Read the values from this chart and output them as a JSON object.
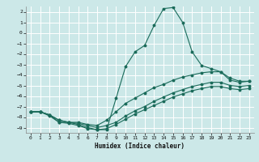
{
  "title": "",
  "xlabel": "Humidex (Indice chaleur)",
  "bg_color": "#cce8e8",
  "grid_color": "#ffffff",
  "line_color": "#1a6b5a",
  "xlim": [
    -0.5,
    23.5
  ],
  "ylim": [
    -9.5,
    2.5
  ],
  "xticks": [
    0,
    1,
    2,
    3,
    4,
    5,
    6,
    7,
    8,
    9,
    10,
    11,
    12,
    13,
    14,
    15,
    16,
    17,
    18,
    19,
    20,
    21,
    22,
    23
  ],
  "yticks": [
    2,
    1,
    0,
    -1,
    -2,
    -3,
    -4,
    -5,
    -6,
    -7,
    -8,
    -9
  ],
  "line1_x": [
    0,
    1,
    2,
    3,
    4,
    5,
    6,
    7,
    8,
    9,
    10,
    11,
    12,
    13,
    14,
    15,
    16,
    17,
    18,
    19,
    20,
    21,
    22,
    23
  ],
  "line1_y": [
    -7.5,
    -7.5,
    -7.8,
    -8.5,
    -8.5,
    -8.7,
    -9.0,
    -9.2,
    -9.2,
    -6.2,
    -3.2,
    -1.8,
    -1.2,
    0.7,
    2.3,
    2.4,
    1.0,
    -1.8,
    -3.1,
    -3.4,
    -3.7,
    -4.5,
    -4.7,
    -4.6
  ],
  "line2_x": [
    0,
    1,
    2,
    3,
    4,
    5,
    6,
    7,
    8,
    9,
    10,
    11,
    12,
    13,
    14,
    15,
    16,
    17,
    18,
    19,
    20,
    21,
    22,
    23
  ],
  "line2_y": [
    -7.5,
    -7.5,
    -7.8,
    -8.3,
    -8.5,
    -8.5,
    -8.7,
    -8.8,
    -8.3,
    -7.5,
    -6.7,
    -6.2,
    -5.7,
    -5.2,
    -4.9,
    -4.5,
    -4.2,
    -4.0,
    -3.8,
    -3.7,
    -3.7,
    -4.3,
    -4.6,
    -4.6
  ],
  "line3_x": [
    0,
    1,
    2,
    3,
    4,
    5,
    6,
    7,
    8,
    9,
    10,
    11,
    12,
    13,
    14,
    15,
    16,
    17,
    18,
    19,
    20,
    21,
    22,
    23
  ],
  "line3_y": [
    -7.5,
    -7.5,
    -7.8,
    -8.3,
    -8.5,
    -8.6,
    -8.8,
    -9.0,
    -8.8,
    -8.5,
    -7.9,
    -7.4,
    -7.0,
    -6.5,
    -6.1,
    -5.7,
    -5.4,
    -5.1,
    -4.9,
    -4.7,
    -4.7,
    -5.0,
    -5.1,
    -5.0
  ],
  "line4_x": [
    0,
    1,
    2,
    3,
    4,
    5,
    6,
    7,
    8,
    9,
    10,
    11,
    12,
    13,
    14,
    15,
    16,
    17,
    18,
    19,
    20,
    21,
    22,
    23
  ],
  "line4_y": [
    -7.5,
    -7.5,
    -7.9,
    -8.5,
    -8.6,
    -8.8,
    -9.1,
    -9.2,
    -9.1,
    -8.7,
    -8.2,
    -7.7,
    -7.3,
    -6.9,
    -6.5,
    -6.1,
    -5.8,
    -5.5,
    -5.3,
    -5.1,
    -5.1,
    -5.3,
    -5.4,
    -5.3
  ]
}
